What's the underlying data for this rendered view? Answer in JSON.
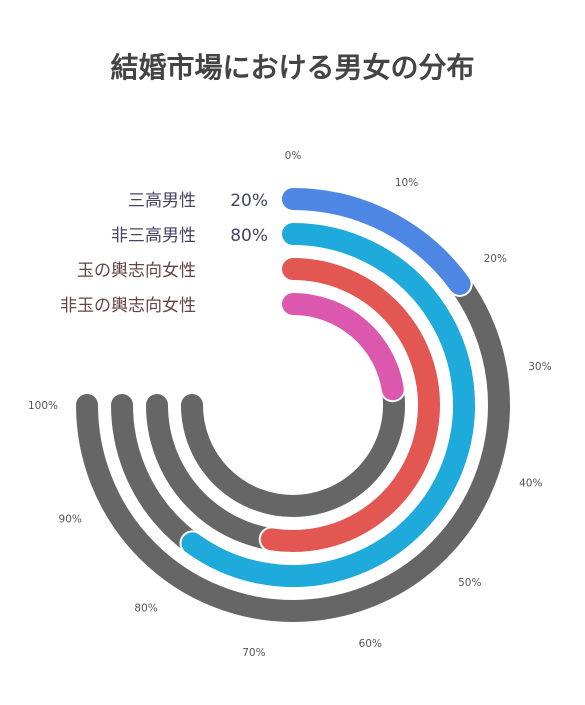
{
  "chart_data": {
    "type": "radial-bar",
    "title": "結婚市場における男女の分布",
    "angular_range": [
      0,
      100
    ],
    "angular_unit": "%",
    "tick_labels": [
      "0%",
      "10%",
      "20%",
      "30%",
      "40%",
      "50%",
      "60%",
      "70%",
      "80%",
      "90%",
      "100%"
    ],
    "series": [
      {
        "name": "三高男性",
        "value": 20,
        "value_label": "20%",
        "color": "#4e86e4"
      },
      {
        "name": "非三高男性",
        "value": 80,
        "value_label": "80%",
        "color": "#1eaada"
      },
      {
        "name": "玉の輿志向女性",
        "value": 70,
        "value_label": "",
        "color": "#e35753"
      },
      {
        "name": "非玉の輿志向女性",
        "value": 30,
        "value_label": "",
        "color": "#dc57ae"
      }
    ],
    "track_color": "#666666",
    "legend_color_men": "#444466",
    "legend_color_women": "#664444",
    "grid": false
  }
}
